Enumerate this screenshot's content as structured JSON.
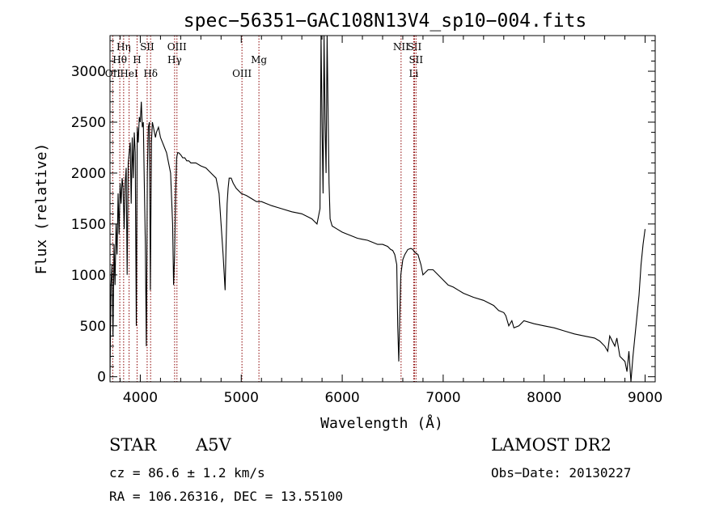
{
  "chart_data": {
    "type": "line",
    "title": "spec−56351−GAC108N13V4_sp10−004.fits",
    "xlabel": "Wavelength (Å)",
    "ylabel": "Flux (relative)",
    "xlim": [
      3700,
      9100
    ],
    "ylim": [
      -50,
      3350
    ],
    "xticks": [
      4000,
      5000,
      6000,
      7000,
      8000,
      9000
    ],
    "yticks": [
      0,
      500,
      1000,
      1500,
      2000,
      2500,
      3000
    ],
    "xtick_labels": [
      "4000",
      "5000",
      "6000",
      "7000",
      "8000",
      "9000"
    ],
    "ytick_labels": [
      "0",
      "500",
      "1000",
      "1500",
      "2000",
      "2500",
      "3000"
    ],
    "series": [
      {
        "x": [
          3700,
          3710,
          3720,
          3730,
          3740,
          3750,
          3760,
          3770,
          3780,
          3790,
          3800,
          3810,
          3820,
          3830,
          3840,
          3850,
          3860,
          3870,
          3880,
          3890,
          3900,
          3910,
          3920,
          3930,
          3940,
          3950,
          3960,
          3970,
          3980,
          3990,
          4000,
          4010,
          4020,
          4030,
          4040,
          4050,
          4060,
          4070,
          4080,
          4090,
          4100,
          4110,
          4120,
          4130,
          4140,
          4150,
          4160,
          4180,
          4200,
          4220,
          4240,
          4260,
          4280,
          4300,
          4320,
          4330,
          4340,
          4350,
          4360,
          4370,
          4380,
          4400,
          4420,
          4440,
          4460,
          4480,
          4500,
          4550,
          4600,
          4650,
          4700,
          4750,
          4780,
          4800,
          4820,
          4840,
          4850,
          4860,
          4870,
          4880,
          4900,
          4920,
          4950,
          5000,
          5050,
          5100,
          5150,
          5200,
          5250,
          5300,
          5400,
          5500,
          5600,
          5700,
          5750,
          5780,
          5790,
          5800,
          5810,
          5820,
          5830,
          5840,
          5850,
          5860,
          5870,
          5880,
          5900,
          5950,
          6000,
          6050,
          6100,
          6150,
          6200,
          6250,
          6300,
          6350,
          6400,
          6450,
          6480,
          6500,
          6520,
          6540,
          6550,
          6560,
          6570,
          6580,
          6600,
          6620,
          6650,
          6680,
          6700,
          6720,
          6750,
          6780,
          6800,
          6850,
          6900,
          6950,
          7000,
          7050,
          7100,
          7150,
          7200,
          7300,
          7400,
          7500,
          7550,
          7600,
          7620,
          7650,
          7680,
          7700,
          7750,
          7800,
          7900,
          8000,
          8100,
          8200,
          8300,
          8400,
          8500,
          8550,
          8600,
          8630,
          8650,
          8700,
          8720,
          8750,
          8800,
          8820,
          8840,
          8860,
          8880,
          8900,
          8920,
          8940,
          8960,
          8980,
          9000
        ],
        "y": [
          0,
          900,
          1100,
          400,
          1300,
          900,
          1500,
          1200,
          1800,
          1400,
          1900,
          1700,
          1950,
          1850,
          1450,
          1900,
          2050,
          1000,
          2100,
          2200,
          2300,
          1700,
          2350,
          1950,
          2400,
          2200,
          500,
          2450,
          2300,
          2550,
          2500,
          2700,
          2450,
          2500,
          1900,
          1300,
          300,
          2000,
          2450,
          2500,
          850,
          2300,
          2500,
          2450,
          2400,
          2350,
          2400,
          2450,
          2350,
          2300,
          2250,
          2200,
          2100,
          2000,
          1500,
          900,
          1200,
          1800,
          2150,
          2200,
          2200,
          2180,
          2150,
          2150,
          2120,
          2120,
          2100,
          2100,
          2070,
          2050,
          2000,
          1950,
          1800,
          1500,
          1200,
          850,
          1300,
          1700,
          1850,
          1950,
          1950,
          1900,
          1850,
          1800,
          1780,
          1750,
          1720,
          1720,
          1700,
          1680,
          1650,
          1620,
          1600,
          1550,
          1500,
          1650,
          3350,
          2500,
          1800,
          3350,
          2500,
          2000,
          3350,
          2600,
          1900,
          1550,
          1480,
          1450,
          1420,
          1400,
          1380,
          1360,
          1350,
          1340,
          1320,
          1300,
          1300,
          1280,
          1250,
          1240,
          1200,
          1100,
          500,
          150,
          600,
          1000,
          1150,
          1200,
          1250,
          1260,
          1250,
          1220,
          1200,
          1100,
          1000,
          1050,
          1050,
          1000,
          950,
          900,
          880,
          850,
          820,
          780,
          750,
          700,
          650,
          630,
          600,
          500,
          550,
          480,
          500,
          550,
          520,
          500,
          480,
          450,
          420,
          400,
          380,
          350,
          300,
          250,
          400,
          300,
          380,
          200,
          150,
          50,
          250,
          -50,
          200,
          400,
          600,
          800,
          1100,
          1300,
          1450
        ]
      }
    ],
    "spectral_lines": [
      {
        "label": "Hη",
        "x": 3835,
        "row": 0
      },
      {
        "label": "Hθ",
        "x": 3797,
        "row": 1
      },
      {
        "label": "OII",
        "x": 3727,
        "row": 2
      },
      {
        "label": "HeI",
        "x": 3889,
        "row": 2
      },
      {
        "label": "SII",
        "x": 4068,
        "row": 0
      },
      {
        "label": "H",
        "x": 3968,
        "row": 1
      },
      {
        "label": "Hδ",
        "x": 4102,
        "row": 2
      },
      {
        "label": "OIII",
        "x": 4363,
        "row": 0
      },
      {
        "label": "Hγ",
        "x": 4340,
        "row": 1
      },
      {
        "label": "Mg",
        "x": 5175,
        "row": 1
      },
      {
        "label": "OIII",
        "x": 5007,
        "row": 2
      },
      {
        "label": "NII",
        "x": 6583,
        "row": 0
      },
      {
        "label": "SII",
        "x": 6716,
        "row": 0
      },
      {
        "label": "SII",
        "x": 6731,
        "row": 1
      },
      {
        "label": "Li",
        "x": 6708,
        "row": 2
      }
    ]
  },
  "info": {
    "object_class": "STAR",
    "subclass": "A5V",
    "survey": "LAMOST DR2",
    "redshift": "cz = 86.6 ± 1.2 km/s",
    "obs_date": "Obs−Date: 20130227",
    "coordinates": "RA = 106.26316, DEC =  13.55100"
  },
  "colors": {
    "line_markers": "#8b0000",
    "spectrum": "#000000",
    "axes": "#000000"
  }
}
